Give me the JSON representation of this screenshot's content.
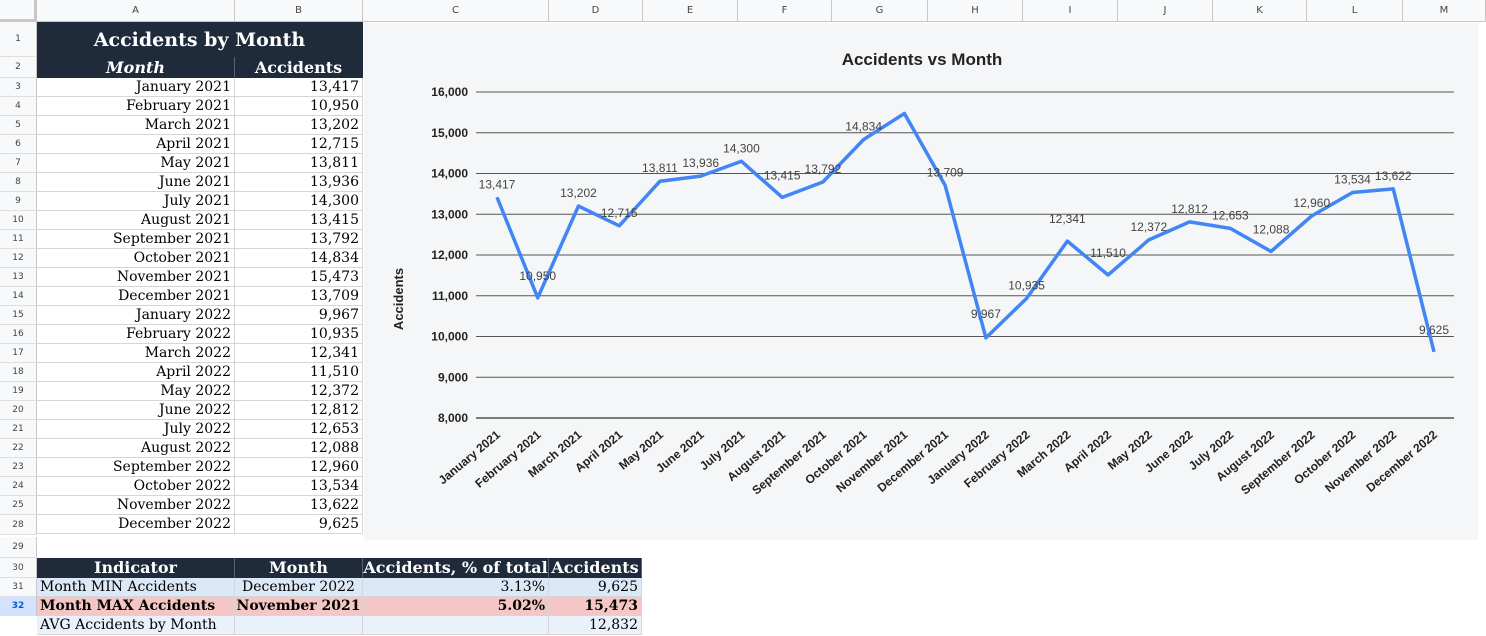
{
  "columns": [
    "A",
    "B",
    "C",
    "D",
    "E",
    "F",
    "G",
    "H",
    "I",
    "J",
    "K",
    "L",
    "M"
  ],
  "rows": [
    "1",
    "2",
    "3",
    "4",
    "5",
    "6",
    "7",
    "8",
    "9",
    "10",
    "11",
    "12",
    "13",
    "14",
    "15",
    "16",
    "17",
    "18",
    "19",
    "20",
    "21",
    "22",
    "23",
    "24",
    "25",
    "26",
    "28",
    "29",
    "30",
    "31",
    "32"
  ],
  "table": {
    "title": "Accidents by Month",
    "header_month": "Month",
    "header_accidents": "Accidents",
    "rows": [
      {
        "month": "January 2021",
        "value": "13,417"
      },
      {
        "month": "February 2021",
        "value": "10,950"
      },
      {
        "month": "March 2021",
        "value": "13,202"
      },
      {
        "month": "April 2021",
        "value": "12,715"
      },
      {
        "month": "May 2021",
        "value": "13,811"
      },
      {
        "month": "June 2021",
        "value": "13,936"
      },
      {
        "month": "July 2021",
        "value": "14,300"
      },
      {
        "month": "August 2021",
        "value": "13,415"
      },
      {
        "month": "September 2021",
        "value": "13,792"
      },
      {
        "month": "October 2021",
        "value": "14,834"
      },
      {
        "month": "November 2021",
        "value": "15,473"
      },
      {
        "month": "December 2021",
        "value": "13,709"
      },
      {
        "month": "January 2022",
        "value": "9,967"
      },
      {
        "month": "February 2022",
        "value": "10,935"
      },
      {
        "month": "March 2022",
        "value": "12,341"
      },
      {
        "month": "April 2022",
        "value": "11,510"
      },
      {
        "month": "May 2022",
        "value": "12,372"
      },
      {
        "month": "June 2022",
        "value": "12,812"
      },
      {
        "month": "July 2022",
        "value": "12,653"
      },
      {
        "month": "August 2022",
        "value": "12,088"
      },
      {
        "month": "September 2022",
        "value": "12,960"
      },
      {
        "month": "October 2022",
        "value": "13,534"
      },
      {
        "month": "November 2022",
        "value": "13,622"
      },
      {
        "month": "December 2022",
        "value": "9,625"
      }
    ]
  },
  "summary": {
    "headers": [
      "Indicator",
      "Month",
      "Accidents, % of total",
      "Accidents"
    ],
    "min": {
      "indicator": "Month MIN Accidents",
      "month": "December 2022",
      "pct": "3.13%",
      "value": "9,625"
    },
    "max": {
      "indicator": "Month MAX Accidents",
      "month": "November 2021",
      "pct": "5.02%",
      "value": "15,473"
    },
    "avg": {
      "indicator": "AVG Accidents by Month",
      "month": "",
      "pct": "",
      "value": "12,832"
    }
  },
  "chart_data": {
    "type": "line",
    "title": "Accidents vs Month",
    "xlabel": "",
    "ylabel": "Accidents",
    "ylim": [
      8000,
      16000
    ],
    "yticks": [
      "8,000",
      "9,000",
      "10,000",
      "11,000",
      "12,000",
      "13,000",
      "14,000",
      "15,000",
      "16,000"
    ],
    "ytick_values": [
      8000,
      9000,
      10000,
      11000,
      12000,
      13000,
      14000,
      15000,
      16000
    ],
    "grid": true,
    "line_color": "#4285f4",
    "categories": [
      "January 2021",
      "February 2021",
      "March 2021",
      "April 2021",
      "May 2021",
      "June 2021",
      "July 2021",
      "August 2021",
      "September 2021",
      "October 2021",
      "November 2021",
      "December 2021",
      "January 2022",
      "February 2022",
      "March 2022",
      "April 2022",
      "May 2022",
      "June 2022",
      "July 2022",
      "August 2022",
      "September 2022",
      "October 2022",
      "November 2022",
      "December 2022"
    ],
    "values": [
      13417,
      10950,
      13202,
      12715,
      13811,
      13936,
      14300,
      13415,
      13792,
      14834,
      15473,
      13709,
      9967,
      10935,
      12341,
      11510,
      12372,
      12812,
      12653,
      12088,
      12960,
      13534,
      13622,
      9625
    ],
    "data_labels": [
      "13,417",
      "10,950",
      "13,202",
      "12,715",
      "13,811",
      "13,936",
      "14,300",
      "13,415",
      "13,792",
      "14,834",
      "",
      "13,709",
      "9,967",
      "10,935",
      "12,341",
      "11,510",
      "12,372",
      "12,812",
      "12,653",
      "12,088",
      "12,960",
      "13,534",
      "13,622",
      "9,625"
    ]
  }
}
